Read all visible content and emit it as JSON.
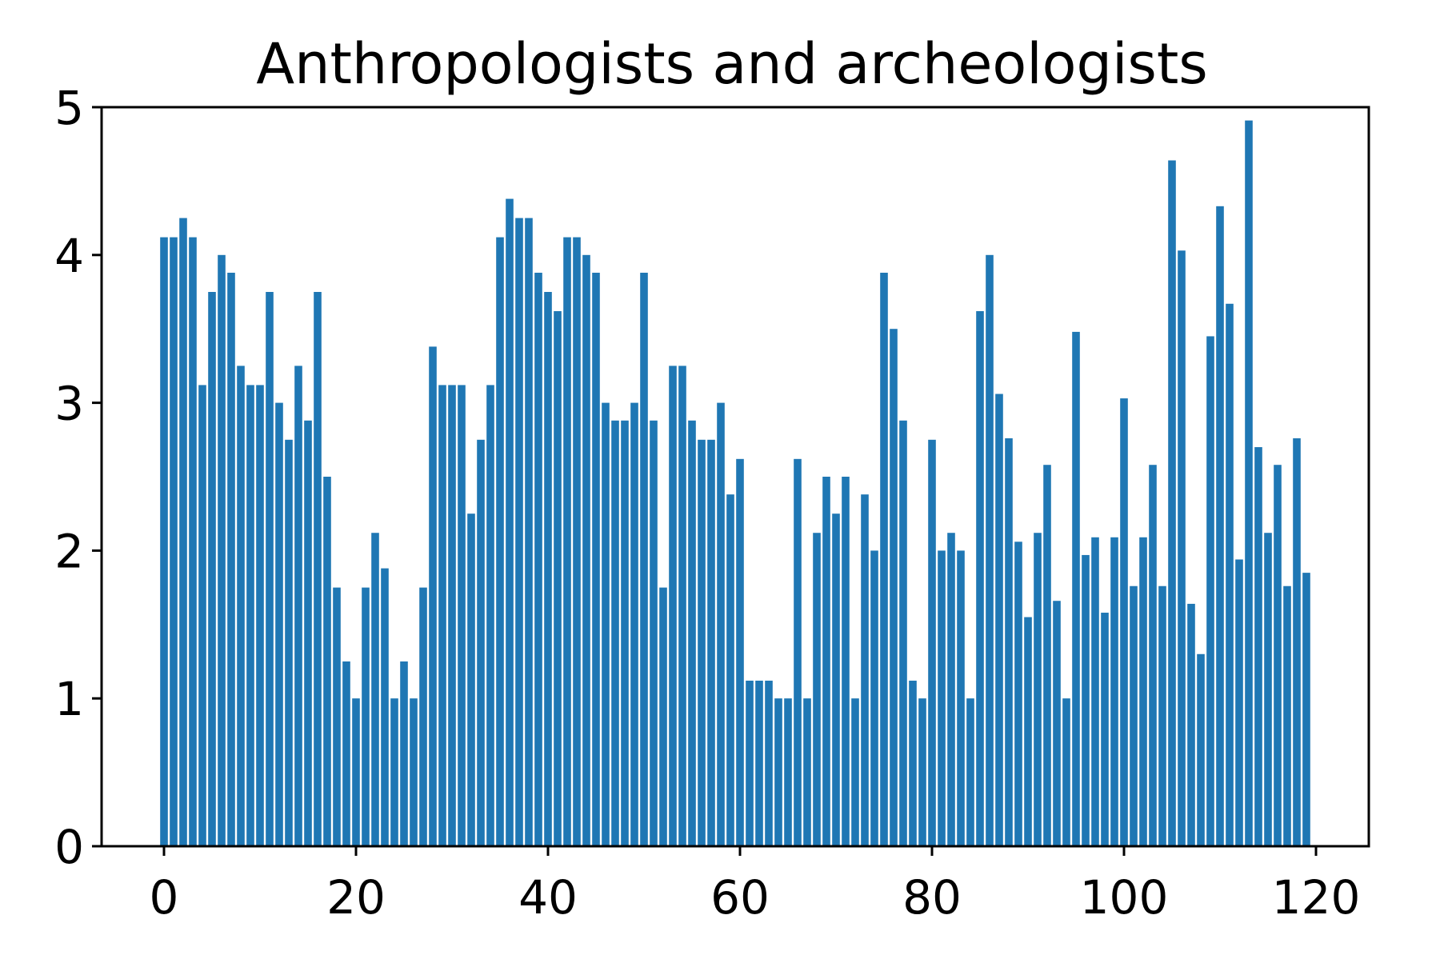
{
  "chart_data": {
    "type": "bar",
    "title": "Anthropologists and archeologists",
    "xlabel": "",
    "ylabel": "",
    "xlim": [
      -6.5,
      125.5
    ],
    "ylim": [
      0,
      5
    ],
    "x_ticks": [
      0,
      20,
      40,
      60,
      80,
      100,
      120
    ],
    "y_ticks": [
      0,
      1,
      2,
      3,
      4,
      5
    ],
    "x_tick_labels": [
      "0",
      "20",
      "40",
      "60",
      "80",
      "100",
      "120"
    ],
    "y_tick_labels": [
      "0",
      "1",
      "2",
      "3",
      "4",
      "5"
    ],
    "bar_color": "#1f77b4",
    "grid": false,
    "legend": "none",
    "x": [
      0,
      1,
      2,
      3,
      4,
      5,
      6,
      7,
      8,
      9,
      10,
      11,
      12,
      13,
      14,
      15,
      16,
      17,
      18,
      19,
      20,
      21,
      22,
      23,
      24,
      25,
      26,
      27,
      28,
      29,
      30,
      31,
      32,
      33,
      34,
      35,
      36,
      37,
      38,
      39,
      40,
      41,
      42,
      43,
      44,
      45,
      46,
      47,
      48,
      49,
      50,
      51,
      52,
      53,
      54,
      55,
      56,
      57,
      58,
      59,
      60,
      61,
      62,
      63,
      64,
      65,
      66,
      67,
      68,
      69,
      70,
      71,
      72,
      73,
      74,
      75,
      76,
      77,
      78,
      79,
      80,
      81,
      82,
      83,
      84,
      85,
      86,
      87,
      88,
      89,
      90,
      91,
      92,
      93,
      94,
      95,
      96,
      97,
      98,
      99,
      100,
      101,
      102,
      103,
      104,
      105,
      106,
      107,
      108,
      109,
      110,
      111,
      112,
      113,
      114,
      115,
      116,
      117,
      118,
      119
    ],
    "values": [
      4.12,
      4.12,
      4.25,
      4.12,
      3.12,
      3.75,
      4.0,
      3.88,
      3.25,
      3.12,
      3.12,
      3.75,
      3.0,
      2.75,
      3.25,
      2.88,
      3.75,
      2.5,
      1.75,
      1.25,
      1.0,
      1.75,
      2.12,
      1.88,
      1.0,
      1.25,
      1.0,
      1.75,
      3.38,
      3.12,
      3.12,
      3.12,
      2.25,
      2.75,
      3.12,
      4.12,
      4.38,
      4.25,
      4.25,
      3.88,
      3.75,
      3.62,
      4.12,
      4.12,
      4.0,
      3.88,
      3.0,
      2.88,
      2.88,
      3.0,
      3.88,
      2.88,
      1.75,
      3.25,
      3.25,
      2.88,
      2.75,
      2.75,
      3.0,
      2.38,
      2.62,
      1.12,
      1.12,
      1.12,
      1.0,
      1.0,
      2.62,
      1.0,
      2.12,
      2.5,
      2.25,
      2.5,
      1.0,
      2.38,
      2.0,
      3.88,
      3.5,
      2.88,
      1.12,
      1.0,
      2.75,
      2.0,
      2.12,
      2.0,
      1.0,
      3.62,
      4.0,
      3.06,
      2.76,
      2.06,
      1.55,
      2.12,
      2.58,
      1.66,
      1.0,
      3.48,
      1.97,
      2.09,
      1.58,
      2.09,
      3.03,
      1.76,
      2.09,
      2.58,
      1.76,
      4.64,
      4.03,
      1.64,
      1.3,
      3.45,
      4.33,
      3.67,
      1.94,
      4.91,
      2.7,
      2.12,
      2.58,
      1.76,
      2.76,
      1.85
    ]
  }
}
